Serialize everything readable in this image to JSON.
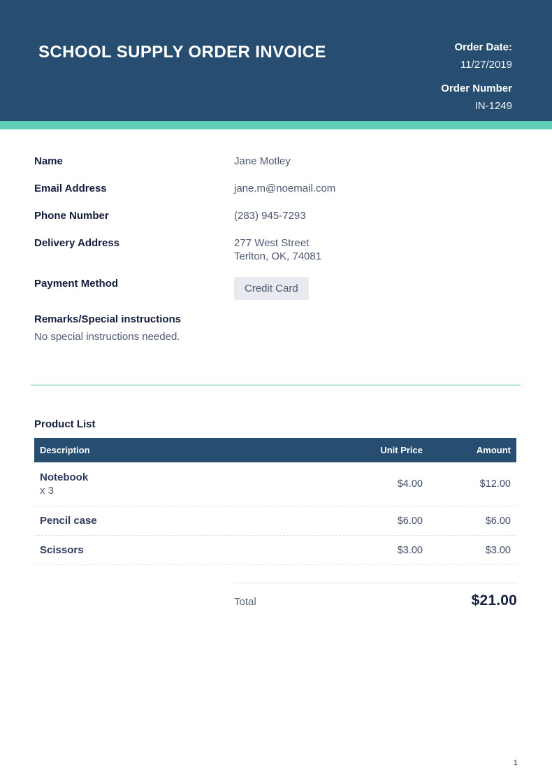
{
  "header": {
    "title": "SCHOOL SUPPLY ORDER INVOICE",
    "order_date_label": "Order Date:",
    "order_date": "11/27/2019",
    "order_number_label": "Order Number",
    "order_number": "IN-1249"
  },
  "colors": {
    "header_bg": "#274d70",
    "accent_stripe": "#5fceb4",
    "divider_teal": "#44c3a6",
    "table_header_bg": "#274e71",
    "label_navy": "#141d3d",
    "value_gray": "#4e5a72",
    "chip_bg": "#e8eaef"
  },
  "customer": {
    "fields": [
      {
        "label": "Name",
        "value": "Jane Motley"
      },
      {
        "label": "Email Address",
        "value": "jane.m@noemail.com"
      },
      {
        "label": "Phone Number",
        "value": "(283) 945-7293"
      },
      {
        "label": "Delivery Address",
        "value_line1": "277 West Street",
        "value_line2": "Terlton, OK, 74081"
      }
    ],
    "payment_method_label": "Payment Method",
    "payment_method_value": "Credit Card",
    "remarks_label": "Remarks/Special instructions",
    "remarks_value": "No special instructions needed."
  },
  "product_list": {
    "heading": "Product List",
    "columns": {
      "description": "Description",
      "unit_price": "Unit Price",
      "amount": "Amount"
    },
    "rows": [
      {
        "description": "Notebook",
        "quantity": "x 3",
        "unit_price": "$4.00",
        "amount": "$12.00"
      },
      {
        "description": "Pencil case",
        "quantity": "",
        "unit_price": "$6.00",
        "amount": "$6.00"
      },
      {
        "description": "Scissors",
        "quantity": "",
        "unit_price": "$3.00",
        "amount": "$3.00"
      }
    ],
    "total_label": "Total",
    "total_value": "$21.00"
  },
  "footer": {
    "page_number": "1"
  }
}
